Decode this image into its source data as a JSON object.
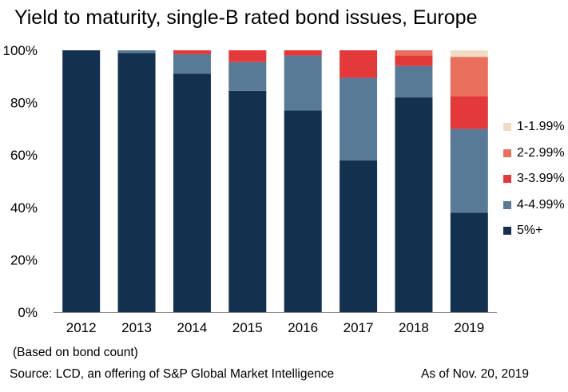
{
  "header": {
    "title": "Yield to maturity, single-B rated bond issues, Europe"
  },
  "footer": {
    "note": "(Based on bond count)",
    "source": "Source: LCD, an offering of S&P Global Market Intelligence",
    "as_of": "As of Nov. 20, 2019"
  },
  "chart_data": {
    "type": "bar",
    "stacked": true,
    "title": "Yield to maturity, single-B rated bond issues, Europe",
    "categories": [
      "2012",
      "2013",
      "2014",
      "2015",
      "2016",
      "2017",
      "2018",
      "2019"
    ],
    "ylim": [
      0,
      100
    ],
    "yticks": [
      "0%",
      "20%",
      "40%",
      "60%",
      "80%",
      "100%"
    ],
    "grid": false,
    "legend_position": "right",
    "series": [
      {
        "name": "5%+",
        "color": "#13304f",
        "values": [
          100,
          99,
          91,
          84.5,
          77,
          58,
          82,
          38
        ]
      },
      {
        "name": "4-4.99%",
        "color": "#587a96",
        "values": [
          0,
          1,
          7.5,
          11,
          21,
          31.5,
          12,
          32
        ]
      },
      {
        "name": "3-3.99%",
        "color": "#e3393b",
        "values": [
          0,
          0,
          1.5,
          4.5,
          2,
          10.5,
          4,
          12.5
        ]
      },
      {
        "name": "2-2.99%",
        "color": "#ea705e",
        "values": [
          0,
          0,
          0,
          0,
          0,
          0,
          2,
          15
        ]
      },
      {
        "name": "1-1.99%",
        "color": "#f0dcc4",
        "values": [
          0,
          0,
          0,
          0,
          0,
          0,
          0,
          2.5
        ]
      }
    ]
  }
}
